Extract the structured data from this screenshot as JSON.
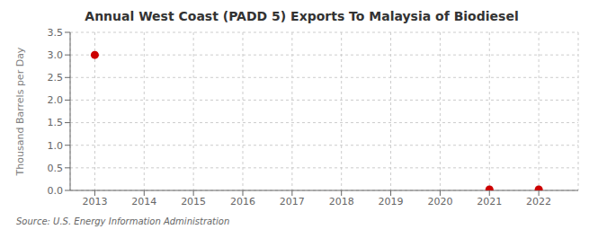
{
  "chart_data": {
    "type": "scatter",
    "title": "Annual West Coast (PADD 5) Exports To Malaysia of Biodiesel",
    "y_label": "Thousand Barrels per Day",
    "source": "Source: U.S. Energy Information Administration",
    "x": [
      2013,
      2021,
      2022
    ],
    "values": [
      3.0,
      0.02,
      0.02
    ],
    "color": "#cc0000",
    "marker": "circle",
    "xlim": [
      2012.5,
      2022.8
    ],
    "xticks": [
      2013,
      2014,
      2015,
      2016,
      2017,
      2018,
      2019,
      2020,
      2021,
      2022
    ],
    "ylim": [
      0.0,
      3.5
    ],
    "yticks": [
      {
        "value": 0.0,
        "label": "0.0"
      },
      0.5,
      {
        "value": 1.0,
        "label": "1.0"
      },
      1.5,
      {
        "value": 2.0,
        "label": "2.0"
      },
      2.5,
      {
        "value": 3.0,
        "label": "3.0"
      },
      3.5
    ],
    "grid": true
  }
}
